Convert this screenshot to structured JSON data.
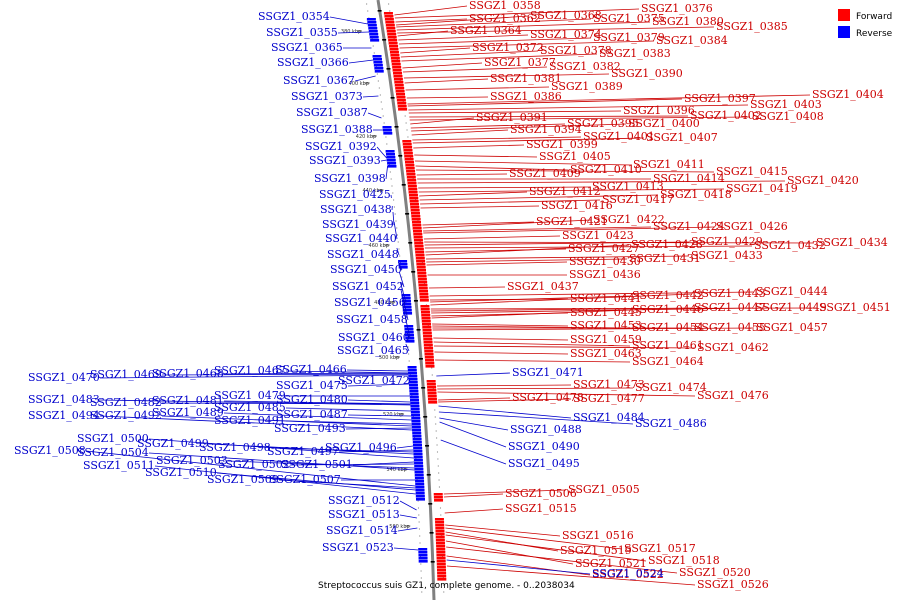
{
  "caption": "Streptococcus suis GZ1, complete genome. - 0..2038034",
  "legend": [
    {
      "label": "Forward",
      "color": "#ff0000"
    },
    {
      "label": "Reverse",
      "color": "#0000ff"
    }
  ],
  "colors": {
    "forward": "#cc0000",
    "reverse": "#0000cc",
    "forward_glyph": "#ff0000",
    "reverse_glyph": "#0000ff",
    "backbone": "#808080"
  },
  "ticks": [
    "380 kbp",
    "400 kbp",
    "420 kbp",
    "440 kbp",
    "460 kbp",
    "480 kbp",
    "500 kbp",
    "520 kbp",
    "540 kbp",
    "560 kbp"
  ],
  "forward_labels": [
    "SSGZ1_0358",
    "SSGZ1_0376",
    "SSGZ1_0362",
    "SSGZ1_0368",
    "SSGZ1_0375",
    "SSGZ1_0380",
    "SSGZ1_0385",
    "SSGZ1_0364",
    "SSGZ1_0374",
    "SSGZ1_0379",
    "SSGZ1_0384",
    "SSGZ1_0372",
    "SSGZ1_0378",
    "SSGZ1_0383",
    "SSGZ1_0377",
    "SSGZ1_0382",
    "SSGZ1_0390",
    "SSGZ1_0381",
    "SSGZ1_0389",
    "SSGZ1_0386",
    "SSGZ1_0404",
    "SSGZ1_0397",
    "SSGZ1_0403",
    "SSGZ1_0396",
    "SSGZ1_0402",
    "SSGZ1_0408",
    "SSGZ1_0391",
    "SSGZ1_0395",
    "SSGZ1_0400",
    "SSGZ1_0394",
    "SSGZ1_0401",
    "SSGZ1_0407",
    "SSGZ1_0399",
    "SSGZ1_0405",
    "SSGZ1_0411",
    "SSGZ1_0410",
    "SSGZ1_0415",
    "SSGZ1_0409",
    "SSGZ1_0414",
    "SSGZ1_0420",
    "SSGZ1_0413",
    "SSGZ1_0419",
    "SSGZ1_0412",
    "SSGZ1_0418",
    "SSGZ1_0417",
    "SSGZ1_0416",
    "SSGZ1_0421",
    "SSGZ1_0422",
    "SSGZ1_0424",
    "SSGZ1_0426",
    "SSGZ1_0423",
    "SSGZ1_0434",
    "SSGZ1_0429",
    "SSGZ1_0432",
    "SSGZ1_0427",
    "SSGZ1_0428",
    "SSGZ1_0433",
    "SSGZ1_0431",
    "SSGZ1_0430",
    "SSGZ1_0436",
    "SSGZ1_0437",
    "SSGZ1_0444",
    "SSGZ1_0441",
    "SSGZ1_0442",
    "SSGZ1_0443",
    "SSGZ1_0451",
    "SSGZ1_0447",
    "SSGZ1_0449",
    "SSGZ1_0445",
    "SSGZ1_0446",
    "SSGZ1_0453",
    "SSGZ1_0454",
    "SSGZ1_0455",
    "SSGZ1_0457",
    "SSGZ1_0459",
    "SSGZ1_0461",
    "SSGZ1_0462",
    "SSGZ1_0463",
    "SSGZ1_0464",
    "SSGZ1_0473",
    "SSGZ1_0474",
    "SSGZ1_0476",
    "SSGZ1_0478",
    "SSGZ1_0477",
    "SSGZ1_0505",
    "SSGZ1_0506",
    "SSGZ1_0515",
    "SSGZ1_0516",
    "SSGZ1_0517",
    "SSGZ1_0519",
    "SSGZ1_0518",
    "SSGZ1_0521",
    "SSGZ1_0520",
    "SSGZ1_0522",
    "SSGZ1_0526"
  ],
  "reverse_labels": [
    "SSGZ1_0354",
    "SSGZ1_0355",
    "SSGZ1_0365",
    "SSGZ1_0366",
    "SSGZ1_0367",
    "SSGZ1_0373",
    "SSGZ1_0387",
    "SSGZ1_0388",
    "SSGZ1_0392",
    "SSGZ1_0393",
    "SSGZ1_0398",
    "SSGZ1_0425",
    "SSGZ1_0438",
    "SSGZ1_0439",
    "SSGZ1_0440",
    "SSGZ1_0448",
    "SSGZ1_0450",
    "SSGZ1_0452",
    "SSGZ1_0456",
    "SSGZ1_0458",
    "SSGZ1_0460",
    "SSGZ1_0465",
    "SSGZ1_0466",
    "SSGZ1_0467",
    "SSGZ1_0468",
    "SSGZ1_0469",
    "SSGZ1_0470",
    "SSGZ1_0471",
    "SSGZ1_0472",
    "SSGZ1_0475",
    "SSGZ1_0479",
    "SSGZ1_0480",
    "SSGZ1_0481",
    "SSGZ1_0482",
    "SSGZ1_0483",
    "SSGZ1_0484",
    "SSGZ1_0485",
    "SSGZ1_0486",
    "SSGZ1_0487",
    "SSGZ1_0488",
    "SSGZ1_0489",
    "SSGZ1_0490",
    "SSGZ1_0491",
    "SSGZ1_0492",
    "SSGZ1_0493",
    "SSGZ1_0494",
    "SSGZ1_0495",
    "SSGZ1_0496",
    "SSGZ1_0497",
    "SSGZ1_0498",
    "SSGZ1_0499",
    "SSGZ1_0500",
    "SSGZ1_0501",
    "SSGZ1_0502",
    "SSGZ1_0503",
    "SSGZ1_0504",
    "SSGZ1_0507",
    "SSGZ1_0508",
    "SSGZ1_0509",
    "SSGZ1_0510",
    "SSGZ1_0511",
    "SSGZ1_0512",
    "SSGZ1_0513",
    "SSGZ1_0514",
    "SSGZ1_0523",
    "SSGZ1_0524"
  ]
}
